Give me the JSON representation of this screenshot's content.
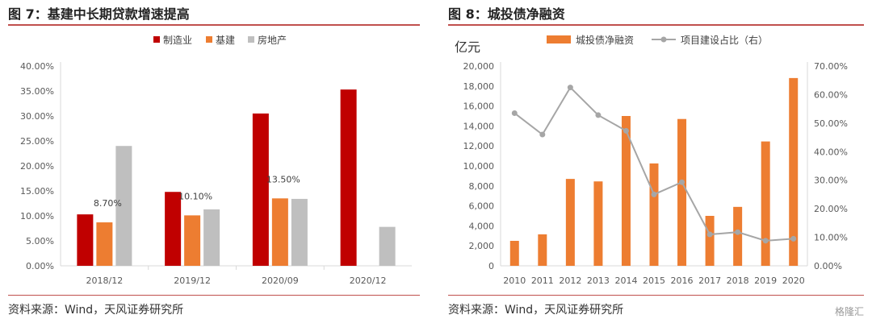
{
  "left": {
    "title": "图 7：基建中长期贷款增速提高",
    "source": "资料来源：Wind，天风证券研究所",
    "chart_data": {
      "type": "bar",
      "categories": [
        "2018/12",
        "2019/12",
        "2020/09",
        "2020/12"
      ],
      "ylim": [
        0,
        40
      ],
      "yticks": [
        "0.00%",
        "5.00%",
        "10.00%",
        "15.00%",
        "20.00%",
        "25.00%",
        "30.00%",
        "35.00%",
        "40.00%"
      ],
      "legend_position": "top",
      "series": [
        {
          "name": "制造业",
          "color": "#c00000",
          "values": [
            10.3,
            14.8,
            30.5,
            35.3
          ]
        },
        {
          "name": "基建",
          "color": "#ed7d31",
          "values": [
            8.7,
            10.1,
            13.5,
            null
          ]
        },
        {
          "name": "房地产",
          "color": "#bfbfbf",
          "values": [
            24.0,
            11.3,
            13.4,
            7.8
          ]
        }
      ],
      "annotations": [
        "8.70%",
        "10.10%",
        "13.50%"
      ]
    }
  },
  "right": {
    "title": "图 8：城投债净融资",
    "source": "资料来源：Wind，天风证券研究所",
    "watermark": "格隆汇",
    "chart_data": {
      "type": "bar",
      "ylabel": "亿元",
      "categories": [
        "2010",
        "2011",
        "2012",
        "2013",
        "2014",
        "2015",
        "2016",
        "2017",
        "2018",
        "2019",
        "2020"
      ],
      "ylim": [
        0,
        20000
      ],
      "yticks": [
        "0",
        "2,000",
        "4,000",
        "6,000",
        "8,000",
        "10,000",
        "12,000",
        "14,000",
        "16,000",
        "18,000",
        "20,000"
      ],
      "y2lim": [
        0,
        70
      ],
      "y2ticks": [
        "0.00%",
        "10.00%",
        "20.00%",
        "30.00%",
        "40.00%",
        "50.00%",
        "60.00%",
        "70.00%"
      ],
      "legend_position": "top",
      "series": [
        {
          "name": "城投债净融资",
          "type": "bar",
          "color": "#ed7d31",
          "axis": "left",
          "values": [
            2500,
            3150,
            8700,
            8450,
            15000,
            10250,
            14700,
            5000,
            5900,
            12450,
            18800
          ]
        },
        {
          "name": "项目建设占比（右）",
          "type": "line",
          "color": "#a6a6a6",
          "axis": "right",
          "values": [
            53.5,
            46.0,
            62.5,
            52.8,
            47.3,
            25.0,
            29.3,
            11.0,
            11.8,
            8.8,
            9.5
          ]
        }
      ]
    }
  }
}
